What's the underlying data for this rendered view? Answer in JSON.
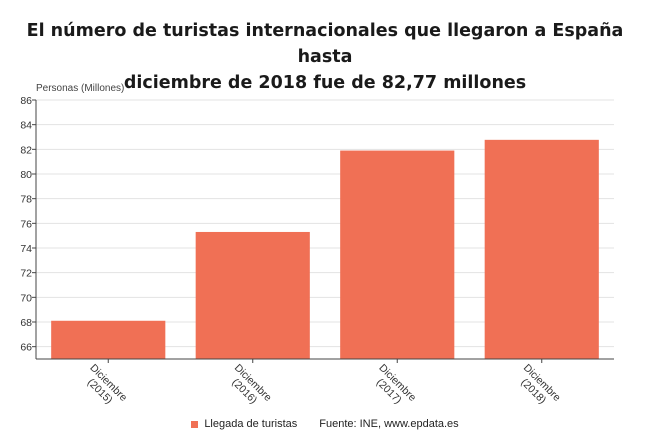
{
  "title_lines": [
    "El número de turistas internacionales que llegaron a España hasta",
    "diciembre de 2018 fue de 82,77 millones"
  ],
  "source": "Fuente: INE, www.epdata.es",
  "colors": {
    "bar": "#f07055",
    "axis": "#444444"
  },
  "chart_data": {
    "type": "bar",
    "title": "El número de turistas internacionales que llegaron a España hasta diciembre de 2018 fue de 82,77 millones",
    "ylabel": "Personas (Millones)",
    "xlabel": "",
    "categories": [
      "Diciembre (2015)",
      "Diciembre (2016)",
      "Diciembre (2017)",
      "Diciembre (2018)"
    ],
    "series": [
      {
        "name": "Llegada de turistas",
        "values": [
          68.1,
          75.3,
          81.9,
          82.77
        ]
      }
    ],
    "ylim": [
      65,
      86
    ],
    "yticks": [
      66,
      68,
      70,
      72,
      74,
      76,
      78,
      80,
      82,
      84,
      86
    ],
    "grid": true,
    "legend": "bottom"
  }
}
